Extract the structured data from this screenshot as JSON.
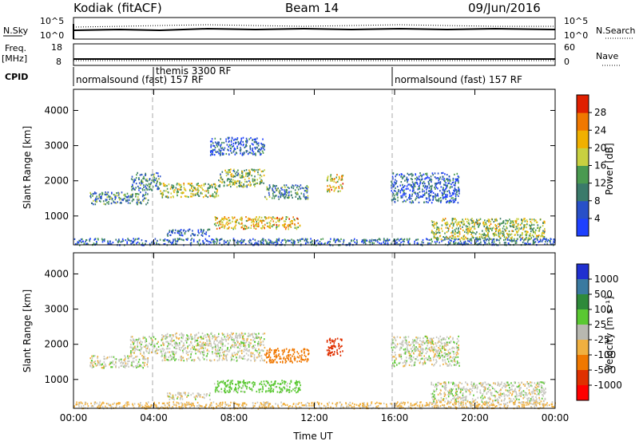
{
  "header": {
    "station": "Kodiak (fitACF)",
    "beam": "Beam 14",
    "date": "09/Jun/2016"
  },
  "strip_panels": {
    "nsky": {
      "left_label": "N.Sky",
      "left_ticks": [
        "10^5",
        "10^0"
      ],
      "right_ticks": [
        "10^5",
        "10^0"
      ],
      "right_label": "N.Search"
    },
    "freq": {
      "left_label_line1": "Freq.",
      "left_label_line2": "[MHz]",
      "left_ticks": [
        "18",
        "8"
      ],
      "right_ticks": [
        "60",
        "0"
      ],
      "right_label": "Nave"
    },
    "cpid": {
      "label": "CPID",
      "segments": [
        "normalsound (fast) 157 RF",
        "themis 3300 RF",
        "normalsound (fast) 157 RF"
      ]
    }
  },
  "chart_data": [
    {
      "type": "heatmap",
      "name": "power",
      "ylabel": "Slant Range [km]",
      "xlabel": "Time UT",
      "x_ticks": [
        "00:00",
        "04:00",
        "08:00",
        "12:00",
        "16:00",
        "20:00",
        "00:00"
      ],
      "x_range_hours": [
        0,
        24
      ],
      "y_ticks": [
        1000,
        2000,
        3000,
        4000
      ],
      "ylim": [
        180,
        4600
      ],
      "colorbar": {
        "label": "Power [dB]",
        "ticks": [
          "4",
          "8",
          "12",
          "16",
          "20",
          "24",
          "28"
        ],
        "range": [
          0,
          30
        ],
        "colors": [
          "#1e40ff",
          "#2850c8",
          "#3a7a6a",
          "#4a9a50",
          "#c8d040",
          "#f0b000",
          "#f07800",
          "#e02000"
        ]
      },
      "regions": [
        {
          "t": [
            0.8,
            3.7
          ],
          "r": [
            1350,
            1700
          ],
          "level": 10
        },
        {
          "t": [
            2.8,
            4.3
          ],
          "r": [
            1750,
            2250
          ],
          "level": 9
        },
        {
          "t": [
            4.3,
            7.2
          ],
          "r": [
            1550,
            1950
          ],
          "level": 16
        },
        {
          "t": [
            7.2,
            9.5
          ],
          "r": [
            1850,
            2350
          ],
          "level": 14
        },
        {
          "t": [
            9.5,
            11.7
          ],
          "r": [
            1500,
            1900
          ],
          "level": 10
        },
        {
          "t": [
            12.6,
            13.4
          ],
          "r": [
            1700,
            2200
          ],
          "level": 20
        },
        {
          "t": [
            7.0,
            11.3
          ],
          "r": [
            650,
            1000
          ],
          "level": 20
        },
        {
          "t": [
            4.6,
            6.8
          ],
          "r": [
            450,
            650
          ],
          "level": 6
        },
        {
          "t": [
            15.8,
            19.2
          ],
          "r": [
            1400,
            2250
          ],
          "level": 6
        },
        {
          "t": [
            17.8,
            23.5
          ],
          "r": [
            350,
            950
          ],
          "level": 16
        },
        {
          "t": [
            6.8,
            9.5
          ],
          "r": [
            2750,
            3250
          ],
          "level": 6
        },
        {
          "t": [
            0.0,
            24.0
          ],
          "r": [
            190,
            380
          ],
          "level": 7
        }
      ]
    },
    {
      "type": "heatmap",
      "name": "velocity",
      "ylabel": "Slant Range [km]",
      "xlabel": "Time UT",
      "x_ticks": [
        "00:00",
        "04:00",
        "08:00",
        "12:00",
        "16:00",
        "20:00",
        "00:00"
      ],
      "x_range_hours": [
        0,
        24
      ],
      "y_ticks": [
        1000,
        2000,
        3000,
        4000
      ],
      "ylim": [
        180,
        4600
      ],
      "colorbar": {
        "label": "Velocity [m s⁻¹]",
        "ticks": [
          "1000",
          "500",
          "100",
          "25",
          "-25",
          "-100",
          "-500",
          "-1000"
        ],
        "colors": [
          "#2030d0",
          "#3a7aa0",
          "#2e8a3a",
          "#5ac832",
          "#b8b8b0",
          "#f0b040",
          "#f07800",
          "#e03000",
          "#ff0000"
        ]
      },
      "regions": [
        {
          "t": [
            0.8,
            3.7
          ],
          "r": [
            1350,
            1700
          ],
          "vel": 0
        },
        {
          "t": [
            2.8,
            4.3
          ],
          "r": [
            1750,
            2250
          ],
          "vel": 0
        },
        {
          "t": [
            4.3,
            9.5
          ],
          "r": [
            1550,
            2350
          ],
          "vel": 0
        },
        {
          "t": [
            9.5,
            11.7
          ],
          "r": [
            1500,
            1900
          ],
          "vel": -150
        },
        {
          "t": [
            12.6,
            13.4
          ],
          "r": [
            1700,
            2200
          ],
          "vel": -700
        },
        {
          "t": [
            7.0,
            11.3
          ],
          "r": [
            650,
            1000
          ],
          "vel": 60
        },
        {
          "t": [
            4.6,
            6.8
          ],
          "r": [
            450,
            650
          ],
          "vel": 0
        },
        {
          "t": [
            15.8,
            19.2
          ],
          "r": [
            1400,
            2250
          ],
          "vel": 0
        },
        {
          "t": [
            17.8,
            23.5
          ],
          "r": [
            350,
            950
          ],
          "vel": 0
        },
        {
          "t": [
            0.0,
            24.0
          ],
          "r": [
            190,
            380
          ],
          "vel": -40
        }
      ]
    }
  ],
  "colors": {
    "gray_scatter": "#c8c8c0",
    "dashed": "#aaaaaa"
  }
}
